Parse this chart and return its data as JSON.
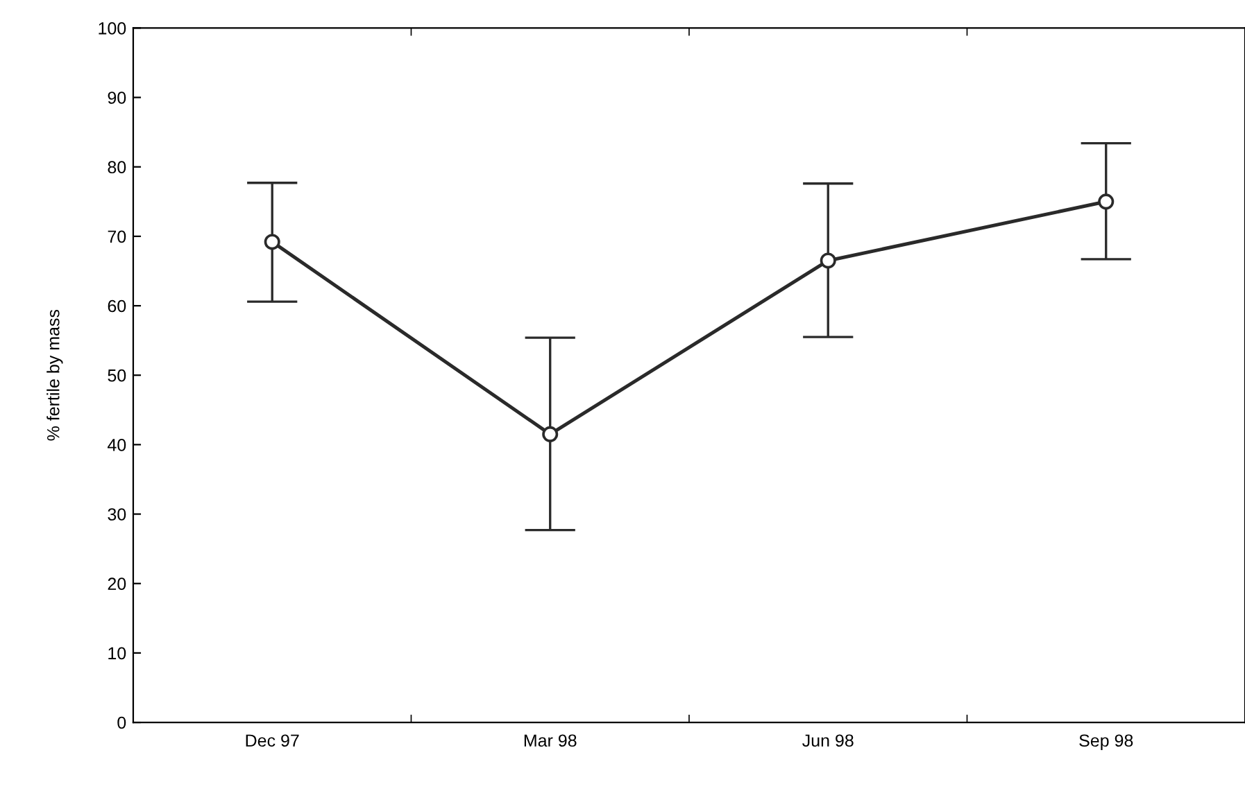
{
  "chart_data": {
    "type": "line",
    "ylabel": "% fertile by mass",
    "categories": [
      "Dec 97",
      "Mar 98",
      "Jun 98",
      "Sep 98"
    ],
    "series": [
      {
        "color": "#2a2a2a",
        "values": [
          69.2,
          41.5,
          66.5,
          75.0
        ],
        "errors": [
          [
            60.6,
            77.7
          ],
          [
            27.7,
            55.4
          ],
          [
            55.5,
            77.6
          ],
          [
            66.7,
            83.4
          ]
        ]
      }
    ],
    "ylim": [
      0,
      100
    ],
    "yticks": [
      0,
      10,
      20,
      30,
      40,
      50,
      60,
      70,
      80,
      90,
      100
    ],
    "marker": "circle",
    "line_style": "solid",
    "grid": false
  }
}
